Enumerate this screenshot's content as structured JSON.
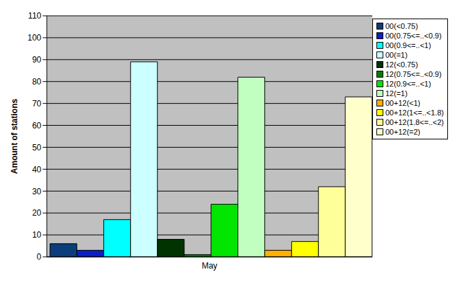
{
  "chart_data": {
    "type": "bar",
    "categories": [
      "May"
    ],
    "y_label": "Amount of stations",
    "ylim": [
      0,
      110
    ],
    "yticks": [
      0,
      10,
      20,
      30,
      40,
      50,
      60,
      70,
      80,
      90,
      100,
      110
    ],
    "grid": true,
    "legend": "upper right",
    "series": [
      {
        "name": "00(<0.75)",
        "color": "#0a3d7a",
        "values": [
          6
        ]
      },
      {
        "name": "00(0.75<=..<0.9)",
        "color": "#0a1fc8",
        "values": [
          3
        ]
      },
      {
        "name": "00(0.9<=..<1)",
        "color": "#00ffff",
        "values": [
          17
        ]
      },
      {
        "name": "00(=1)",
        "color": "#ccffff",
        "values": [
          89
        ]
      },
      {
        "name": "12(<0.75)",
        "color": "#003300",
        "values": [
          8
        ]
      },
      {
        "name": "12(0.75<=..<0.9)",
        "color": "#008000",
        "values": [
          1
        ]
      },
      {
        "name": "12(0.9<=..<1)",
        "color": "#00e600",
        "values": [
          24
        ]
      },
      {
        "name": "12(=1)",
        "color": "#c0ffc0",
        "values": [
          82
        ]
      },
      {
        "name": "00+12(<1)",
        "color": "#ffb000",
        "values": [
          3
        ]
      },
      {
        "name": "00+12(1<=..<1.8)",
        "color": "#ffff00",
        "values": [
          7
        ]
      },
      {
        "name": "00+12(1.8<=..<2)",
        "color": "#ffff99",
        "values": [
          32
        ]
      },
      {
        "name": "00+12(=2)",
        "color": "#ffffcc",
        "values": [
          73
        ]
      }
    ]
  }
}
